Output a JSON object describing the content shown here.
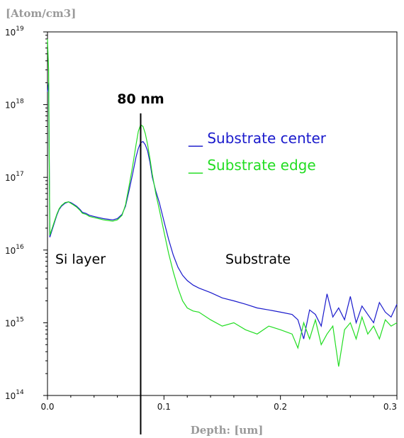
{
  "chart_data": {
    "type": "line",
    "ylabel": "[Atom/cm3]",
    "xlabel": "Depth: [um]",
    "xlim": [
      0,
      0.3
    ],
    "ylim": [
      100000000000000.0,
      1e+19
    ],
    "y_scale": "log",
    "x_ticks": [
      "0.0",
      "0.1",
      "0.2",
      "0.3"
    ],
    "y_ticks": [
      {
        "base": "10",
        "exp": "14"
      },
      {
        "base": "10",
        "exp": "15"
      },
      {
        "base": "10",
        "exp": "16"
      },
      {
        "base": "10",
        "exp": "17"
      },
      {
        "base": "10",
        "exp": "18"
      },
      {
        "base": "10",
        "exp": "19"
      }
    ],
    "legend_position": "top-right",
    "annotations": {
      "peak_label": "80 nm",
      "peak_depth": 0.08,
      "region_left": "Si layer",
      "region_right": "Substrate"
    },
    "series": [
      {
        "name": "Substrate center",
        "legend_label": "__ Substrate center",
        "color": "#1a1acc",
        "x": [
          0.0,
          0.001,
          0.002,
          0.004,
          0.006,
          0.008,
          0.01,
          0.012,
          0.015,
          0.018,
          0.02,
          0.022,
          0.025,
          0.028,
          0.03,
          0.033,
          0.036,
          0.04,
          0.044,
          0.048,
          0.052,
          0.056,
          0.06,
          0.064,
          0.067,
          0.07,
          0.073,
          0.076,
          0.078,
          0.08,
          0.082,
          0.084,
          0.086,
          0.088,
          0.09,
          0.093,
          0.096,
          0.1,
          0.104,
          0.108,
          0.112,
          0.116,
          0.12,
          0.125,
          0.13,
          0.14,
          0.15,
          0.16,
          0.17,
          0.18,
          0.19,
          0.2,
          0.21,
          0.215,
          0.22,
          0.225,
          0.23,
          0.235,
          0.24,
          0.245,
          0.25,
          0.255,
          0.26,
          0.265,
          0.27,
          0.275,
          0.28,
          0.285,
          0.29,
          0.295,
          0.3
        ],
        "values": [
          1.5e+18,
          2e+18,
          1.5e+16,
          1.9e+16,
          2.4e+16,
          3e+16,
          3.6e+16,
          4e+16,
          4.4e+16,
          4.6e+16,
          4.5e+16,
          4.3e+16,
          4e+16,
          3.6e+16,
          3.3e+16,
          3.2e+16,
          3e+16,
          2.9e+16,
          2.8e+16,
          2.7e+16,
          2.65e+16,
          2.6e+16,
          2.7e+16,
          3.1e+16,
          4e+16,
          6.5e+16,
          1.1e+17,
          1.9e+17,
          2.5e+17,
          3e+17,
          3.1e+17,
          2.8e+17,
          2.3e+17,
          1.6e+17,
          1e+17,
          6.5e+16,
          4.5e+16,
          2.5e+16,
          1.4e+16,
          8500000000000000.0,
          5800000000000000.0,
          4500000000000000.0,
          3800000000000000.0,
          3300000000000000.0,
          3000000000000000.0,
          2600000000000000.0,
          2200000000000000.0,
          2000000000000000.0,
          1800000000000000.0,
          1600000000000000.0,
          1500000000000000.0,
          1400000000000000.0,
          1300000000000000.0,
          1100000000000000.0,
          600000000000000.0,
          1500000000000000.0,
          1300000000000000.0,
          900000000000000.0,
          2500000000000000.0,
          1200000000000000.0,
          1600000000000000.0,
          1100000000000000.0,
          2300000000000000.0,
          1000000000000000.0,
          1700000000000000.0,
          1300000000000000.0,
          1000000000000000.0,
          1900000000000000.0,
          1400000000000000.0,
          1200000000000000.0,
          1800000000000000.0
        ]
      },
      {
        "name": "Substrate edge",
        "legend_label": "__ Substrate edge",
        "color": "#22dd22",
        "x": [
          0.0,
          0.001,
          0.002,
          0.004,
          0.006,
          0.008,
          0.01,
          0.012,
          0.015,
          0.018,
          0.02,
          0.022,
          0.025,
          0.028,
          0.03,
          0.033,
          0.036,
          0.04,
          0.044,
          0.048,
          0.052,
          0.056,
          0.06,
          0.064,
          0.067,
          0.07,
          0.073,
          0.076,
          0.078,
          0.08,
          0.082,
          0.084,
          0.086,
          0.088,
          0.09,
          0.093,
          0.096,
          0.1,
          0.104,
          0.108,
          0.112,
          0.116,
          0.12,
          0.125,
          0.13,
          0.14,
          0.15,
          0.16,
          0.17,
          0.18,
          0.19,
          0.2,
          0.21,
          0.215,
          0.22,
          0.225,
          0.23,
          0.235,
          0.24,
          0.245,
          0.25,
          0.255,
          0.26,
          0.265,
          0.27,
          0.275,
          0.28,
          0.285,
          0.29,
          0.295,
          0.3
        ],
        "values": [
          8e+18,
          3e+18,
          1.6e+16,
          2e+16,
          2.5e+16,
          3.1e+16,
          3.7e+16,
          4.1e+16,
          4.5e+16,
          4.6e+16,
          4.4e+16,
          4.2e+16,
          3.9e+16,
          3.5e+16,
          3.2e+16,
          3.1e+16,
          2.9e+16,
          2.8e+16,
          2.7e+16,
          2.6e+16,
          2.55e+16,
          2.5e+16,
          2.6e+16,
          3e+16,
          4.2e+16,
          7.5e+16,
          1.4e+17,
          2.8e+17,
          4.3e+17,
          5.3e+17,
          5e+17,
          4e+17,
          2.8e+17,
          1.8e+17,
          1.1e+17,
          6e+16,
          3.6e+16,
          1.8e+16,
          9000000000000000.0,
          5000000000000000.0,
          3000000000000000.0,
          2000000000000000.0,
          1600000000000000.0,
          1450000000000000.0,
          1400000000000000.0,
          1100000000000000.0,
          900000000000000.0,
          1000000000000000.0,
          800000000000000.0,
          700000000000000.0,
          900000000000000.0,
          800000000000000.0,
          700000000000000.0,
          450000000000000.0,
          1000000000000000.0,
          600000000000000.0,
          1100000000000000.0,
          500000000000000.0,
          700000000000000.0,
          900000000000000.0,
          250000000000000.0,
          800000000000000.0,
          1000000000000000.0,
          600000000000000.0,
          1200000000000000.0,
          700000000000000.0,
          900000000000000.0,
          600000000000000.0,
          1100000000000000.0,
          900000000000000.0,
          1000000000000000.0
        ]
      }
    ]
  }
}
